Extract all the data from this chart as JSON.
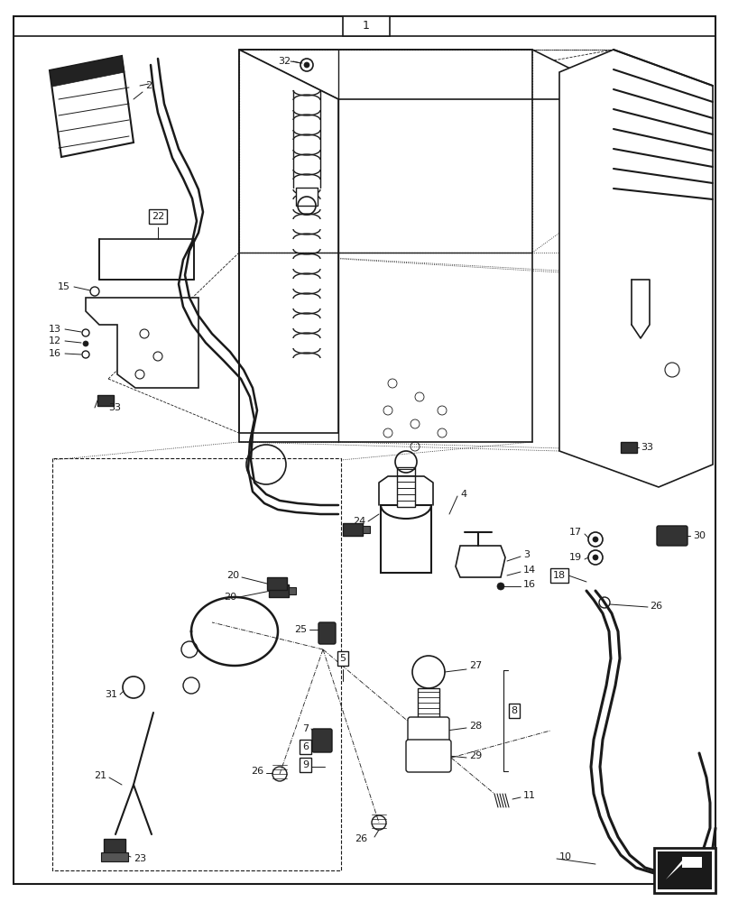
{
  "bg_color": "#ffffff",
  "line_color": "#1a1a1a",
  "fig_width": 8.08,
  "fig_height": 10.0,
  "dpi": 100
}
